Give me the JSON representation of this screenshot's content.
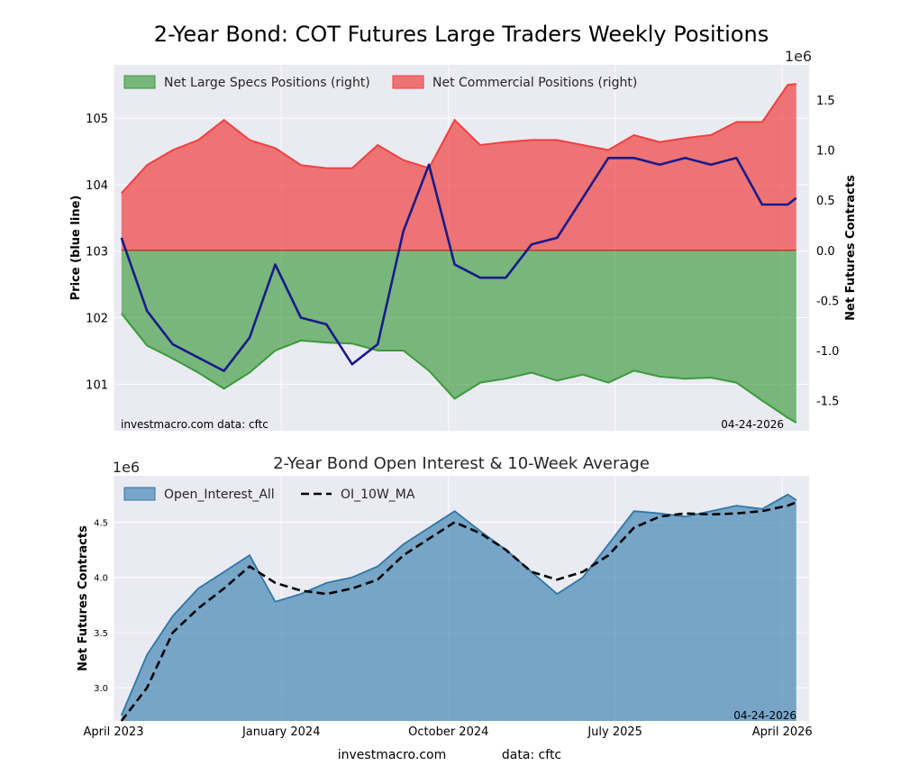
{
  "title": "2-Year Bond: COT Futures Large Traders Weekly Positions",
  "colors": {
    "specs": "#3a9a3a",
    "commercial": "#f04040",
    "price": "#1a1a8a",
    "open_interest": "#4a8ab5",
    "ma": "#000000"
  },
  "chart_data": [
    {
      "type": "area",
      "title": "2-Year Bond: COT Futures Large Traders Weekly Positions",
      "ylabel_left": "Price (blue line)",
      "ylabel_right": "Net Futures Contracts",
      "right_axis_multiplier": "1e6",
      "left_ticks": [
        "101",
        "102",
        "103",
        "104",
        "105"
      ],
      "right_ticks": [
        "-1.5",
        "-1.0",
        "-0.5",
        "0.0",
        "0.5",
        "1.0",
        "1.5"
      ],
      "ylim_left": [
        100.3,
        105.8
      ],
      "ylim_right": [
        -1.8,
        1.85
      ],
      "x_range": [
        "2023-04-01",
        "2026-05-15"
      ],
      "grid": true,
      "legend": "top-left",
      "note_left": "investmacro.com    data: cftc",
      "note_right": "04-24-2026",
      "x": [
        "2023-04-14",
        "2023-05-26",
        "2023-07-07",
        "2023-08-18",
        "2023-09-29",
        "2023-11-10",
        "2023-12-22",
        "2024-02-02",
        "2024-03-15",
        "2024-04-26",
        "2024-06-07",
        "2024-07-19",
        "2024-08-30",
        "2024-10-11",
        "2024-11-22",
        "2025-01-03",
        "2025-02-14",
        "2025-03-28",
        "2025-05-09",
        "2025-06-20",
        "2025-08-01",
        "2025-09-12",
        "2025-10-24",
        "2025-12-05",
        "2026-01-16",
        "2026-02-27",
        "2026-04-10",
        "2026-04-24"
      ],
      "price": [
        103.2,
        102.1,
        101.6,
        101.4,
        101.2,
        101.7,
        102.8,
        102.0,
        101.9,
        101.3,
        101.6,
        103.3,
        104.3,
        102.8,
        102.6,
        102.6,
        103.1,
        103.2,
        103.8,
        104.4,
        104.4,
        104.3,
        104.4,
        104.3,
        104.4,
        103.7,
        103.7,
        103.8
      ],
      "series": [
        {
          "name": "Net Large Specs Positions (right)",
          "values": [
            -0.63,
            -0.95,
            -1.08,
            -1.22,
            -1.38,
            -1.22,
            -1.0,
            -0.9,
            -0.92,
            -0.93,
            -1.0,
            -1.0,
            -1.2,
            -1.48,
            -1.32,
            -1.28,
            -1.22,
            -1.3,
            -1.24,
            -1.32,
            -1.2,
            -1.26,
            -1.28,
            -1.27,
            -1.32,
            -1.5,
            -1.67,
            -1.72
          ]
        },
        {
          "name": "Net Commercial Positions (right)",
          "values": [
            0.57,
            0.85,
            1.0,
            1.1,
            1.3,
            1.1,
            1.02,
            0.85,
            0.82,
            0.82,
            1.05,
            0.9,
            0.82,
            1.3,
            1.05,
            1.08,
            1.1,
            1.1,
            1.05,
            1.0,
            1.15,
            1.08,
            1.12,
            1.15,
            1.28,
            1.28,
            1.65,
            1.66
          ]
        }
      ]
    },
    {
      "type": "area",
      "title": "2-Year Bond Open Interest & 10-Week Average",
      "ylabel": "Net Futures Contracts",
      "y_multiplier": "1e6",
      "y_ticks": [
        "3.0",
        "3.5",
        "4.0",
        "4.5"
      ],
      "ylim": [
        2.7,
        4.92
      ],
      "x_range": [
        "2023-04-01",
        "2026-05-15"
      ],
      "x_ticks": [
        "April 2023",
        "January 2024",
        "October 2024",
        "July 2025",
        "April 2026"
      ],
      "x_tick_dates": [
        "2023-04-01",
        "2024-01-01",
        "2024-10-01",
        "2025-07-01",
        "2026-04-01"
      ],
      "grid": true,
      "legend": "top-left",
      "note_right": "04-24-2026",
      "x": [
        "2023-04-14",
        "2023-05-26",
        "2023-07-07",
        "2023-08-18",
        "2023-09-29",
        "2023-11-10",
        "2023-12-22",
        "2024-02-02",
        "2024-03-15",
        "2024-04-26",
        "2024-06-07",
        "2024-07-19",
        "2024-08-30",
        "2024-10-11",
        "2024-11-22",
        "2025-01-03",
        "2025-02-14",
        "2025-03-28",
        "2025-05-09",
        "2025-06-20",
        "2025-08-01",
        "2025-09-12",
        "2025-10-24",
        "2025-12-05",
        "2026-01-16",
        "2026-02-27",
        "2026-04-10",
        "2026-04-24"
      ],
      "series": [
        {
          "name": "Open_Interest_All",
          "values": [
            2.75,
            3.3,
            3.65,
            3.9,
            4.05,
            4.2,
            3.78,
            3.85,
            3.95,
            4.0,
            4.1,
            4.3,
            4.45,
            4.6,
            4.42,
            4.25,
            4.05,
            3.85,
            4.0,
            4.3,
            4.6,
            4.58,
            4.55,
            4.6,
            4.65,
            4.62,
            4.75,
            4.7
          ]
        },
        {
          "name": "OI_10W_MA",
          "values": [
            2.68,
            3.0,
            3.5,
            3.72,
            3.9,
            4.1,
            3.95,
            3.88,
            3.85,
            3.9,
            3.98,
            4.2,
            4.35,
            4.5,
            4.4,
            4.25,
            4.05,
            3.98,
            4.05,
            4.2,
            4.45,
            4.55,
            4.58,
            4.57,
            4.58,
            4.6,
            4.65,
            4.68
          ]
        }
      ]
    }
  ],
  "footer": {
    "left": "investmacro.com",
    "right": "data: cftc"
  }
}
